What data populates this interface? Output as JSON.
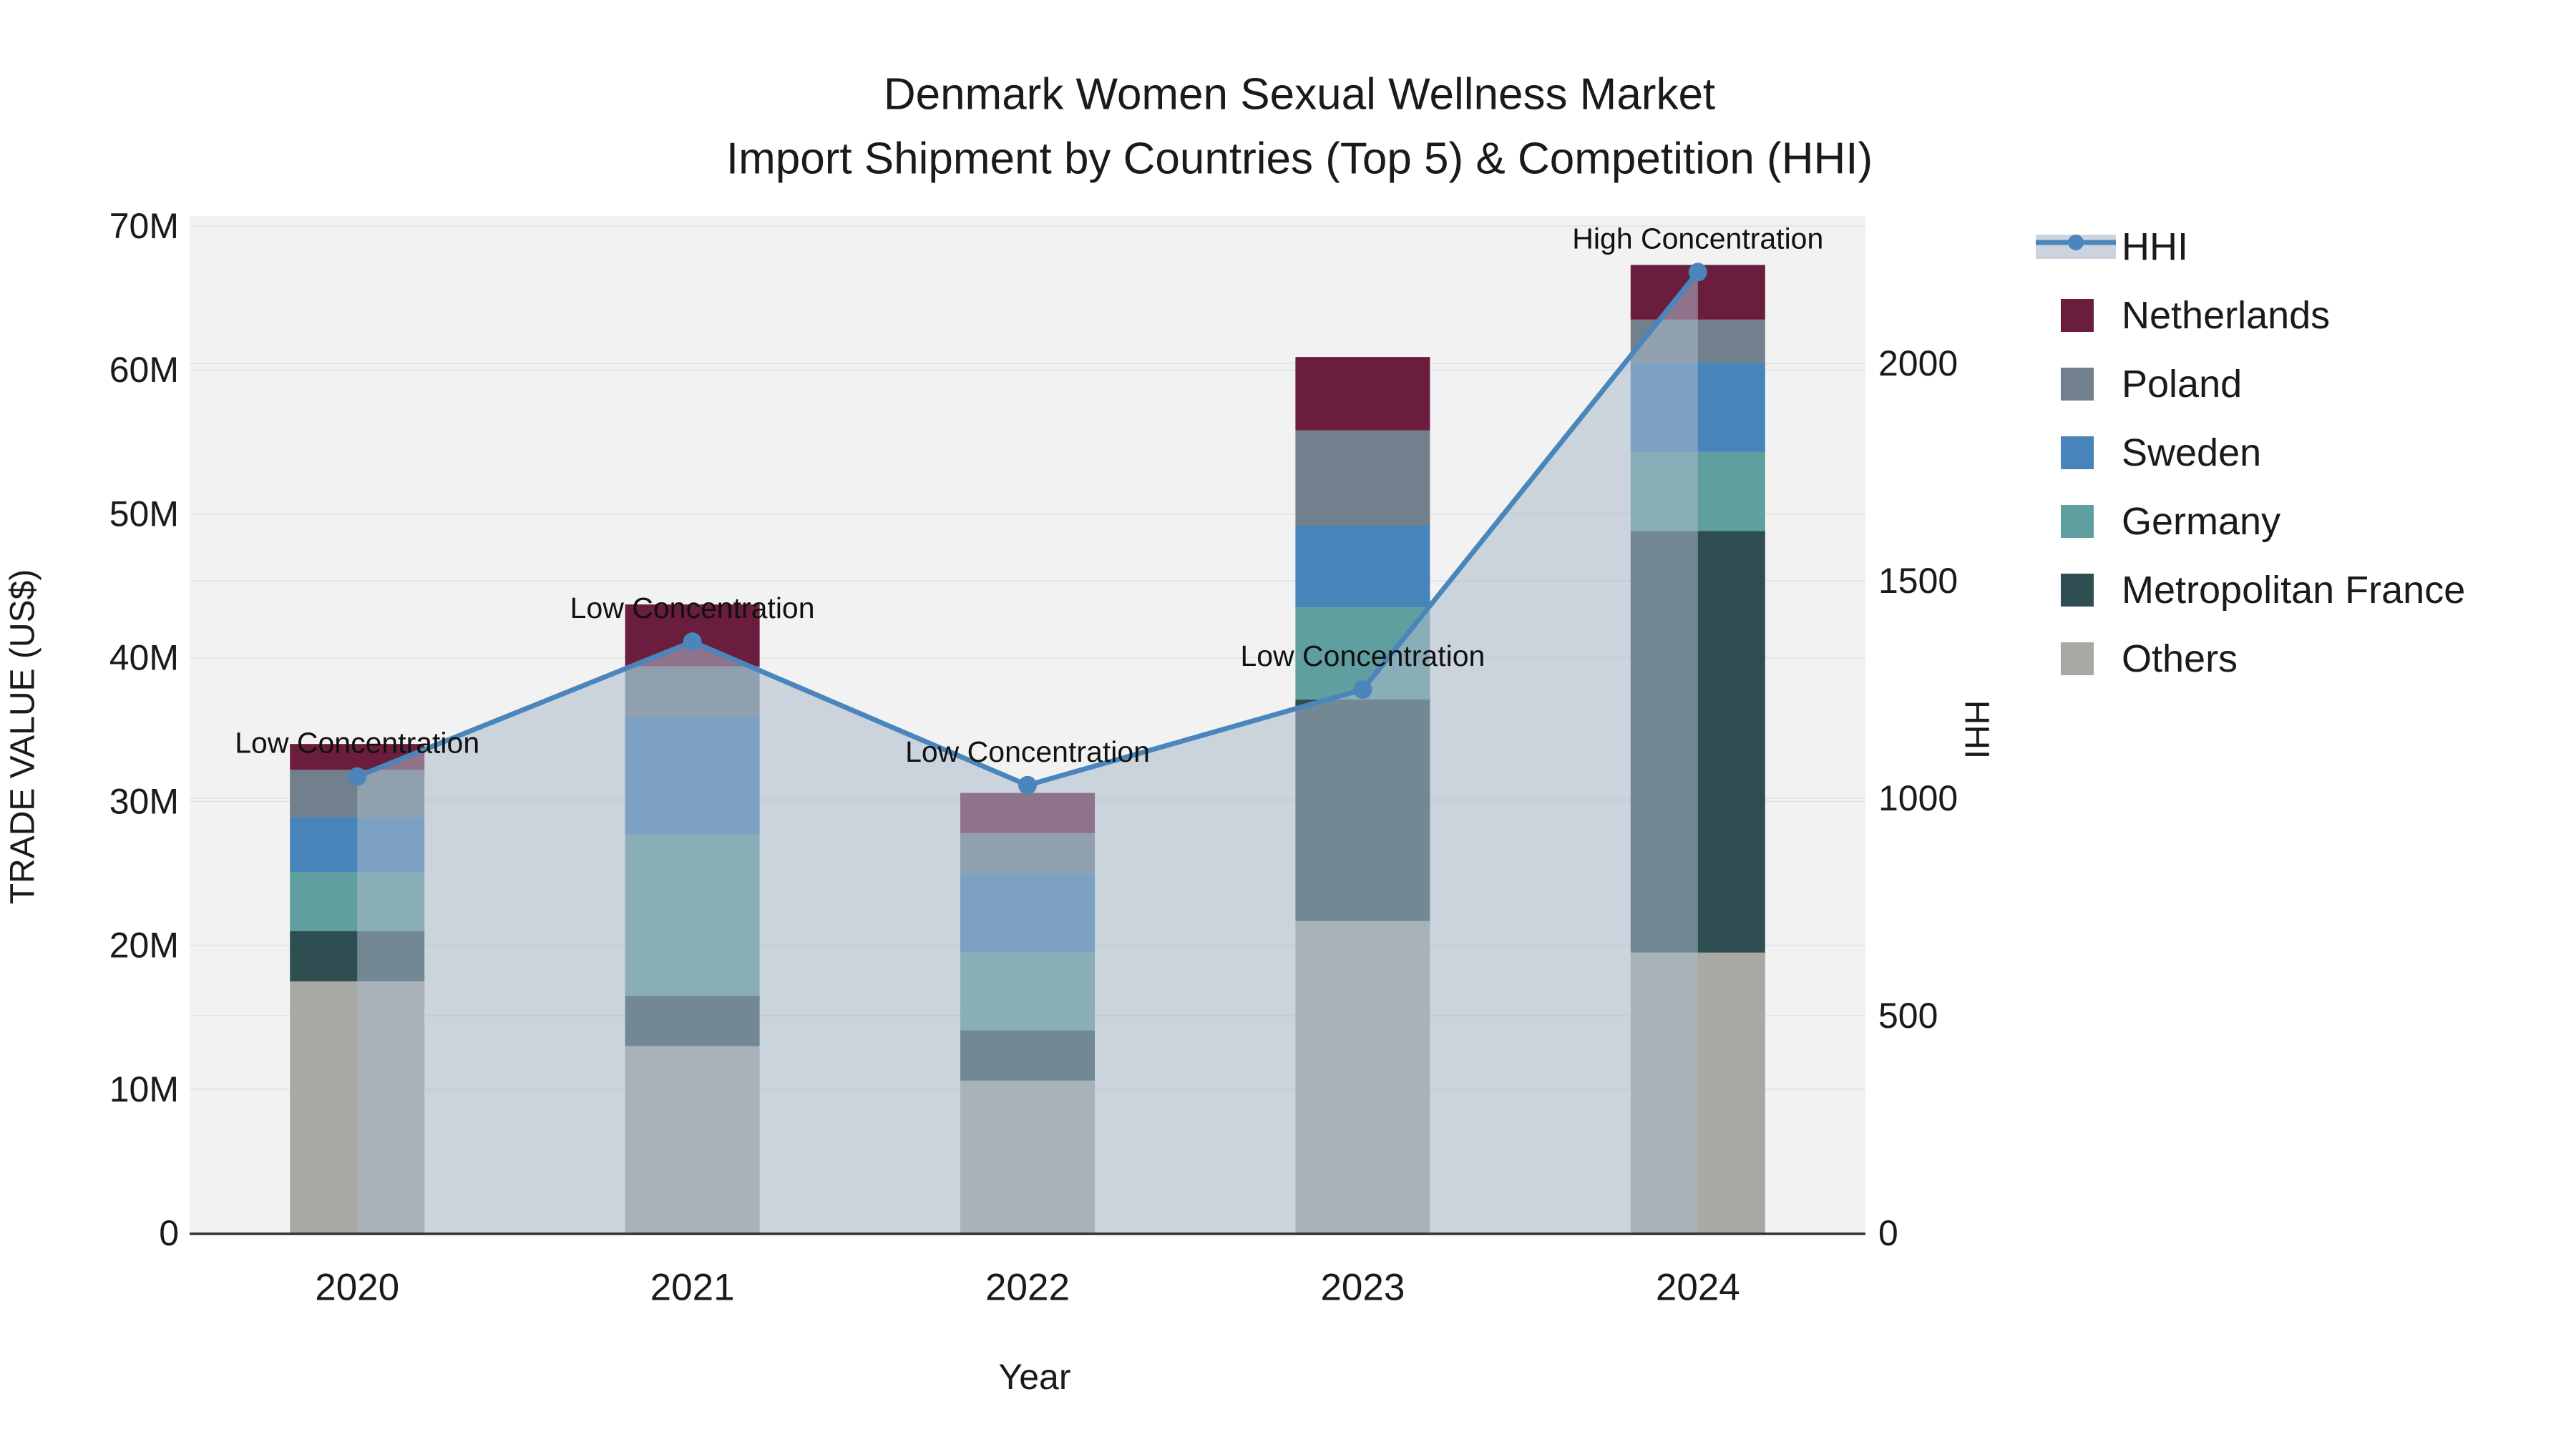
{
  "title": {
    "line1": "Denmark Women Sexual Wellness Market",
    "line2": "Import Shipment by Countries (Top 5) & Competition (HHI)"
  },
  "chart_data": {
    "type": "bar",
    "subtype": "stacked-bars-with-line",
    "stack_order": "bottom_to_top",
    "categories": [
      "2020",
      "2021",
      "2022",
      "2023",
      "2024"
    ],
    "x_title": "Year",
    "y_left": {
      "title": "TRADE VALUE (US$)",
      "unit": "million US$",
      "ticks": [
        "0",
        "10M",
        "20M",
        "30M",
        "40M",
        "50M",
        "60M",
        "70M"
      ],
      "tick_values": [
        0,
        10,
        20,
        30,
        40,
        50,
        60,
        70
      ],
      "axis_top_value": 70.7
    },
    "y_right": {
      "title": "HHI",
      "ticks": [
        "0",
        "500",
        "1000",
        "1500",
        "2000"
      ],
      "tick_values": [
        0,
        500,
        1000,
        1500,
        2000
      ],
      "axis_top_value": 2339
    },
    "series": [
      {
        "name": "Others",
        "color": "#a8a9a5",
        "values": [
          17.5,
          13.0,
          10.6,
          21.7,
          19.5
        ]
      },
      {
        "name": "Metropolitan France",
        "color": "#2e4e52",
        "values": [
          3.5,
          3.5,
          3.5,
          15.4,
          29.3
        ]
      },
      {
        "name": "Germany",
        "color": "#5f9f9f",
        "values": [
          4.1,
          11.2,
          5.4,
          6.4,
          5.5
        ]
      },
      {
        "name": "Sweden",
        "color": "#4684ba",
        "values": [
          3.8,
          8.2,
          5.5,
          5.7,
          6.2
        ]
      },
      {
        "name": "Poland",
        "color": "#72808e",
        "values": [
          3.3,
          3.5,
          2.8,
          6.6,
          3.0
        ]
      },
      {
        "name": "Netherlands",
        "color": "#6b1d3e",
        "values": [
          1.8,
          4.3,
          2.8,
          5.1,
          3.8
        ]
      }
    ],
    "bar_totals": [
      34.0,
      43.7,
      30.6,
      61.0,
      67.3
    ],
    "line": {
      "name": "HHI",
      "color": "#4a86bb",
      "values": [
        1050,
        1360,
        1030,
        1250,
        2210
      ]
    },
    "annotations": [
      {
        "year": "2020",
        "text": "Low Concentration"
      },
      {
        "year": "2021",
        "text": "Low Concentration"
      },
      {
        "year": "2022",
        "text": "Low Concentration"
      },
      {
        "year": "2023",
        "text": "Low Concentration"
      },
      {
        "year": "2024",
        "text": "High Concentration"
      }
    ],
    "grid": true,
    "legend_position": "right"
  },
  "legend": {
    "items": [
      {
        "label": "HHI",
        "kind": "line",
        "color": "#4a86bb"
      },
      {
        "label": "Netherlands",
        "kind": "patch",
        "color": "#6b1d3e"
      },
      {
        "label": "Poland",
        "kind": "patch",
        "color": "#72808e"
      },
      {
        "label": "Sweden",
        "kind": "patch",
        "color": "#4684ba"
      },
      {
        "label": "Germany",
        "kind": "patch",
        "color": "#5f9f9f"
      },
      {
        "label": "Metropolitan France",
        "kind": "patch",
        "color": "#2e4e52"
      },
      {
        "label": "Others",
        "kind": "patch",
        "color": "#a8a9a5"
      }
    ]
  },
  "colors": {
    "figure_background": "#ffffff",
    "plot_background": "#f2f2f2",
    "gridline": "#e3e5e7",
    "axis_line": "#333333",
    "text": "#1a1a1a",
    "hhi_line": "#4a86bb",
    "hhi_area_fill": "rgba(172,186,203,0.55)"
  }
}
